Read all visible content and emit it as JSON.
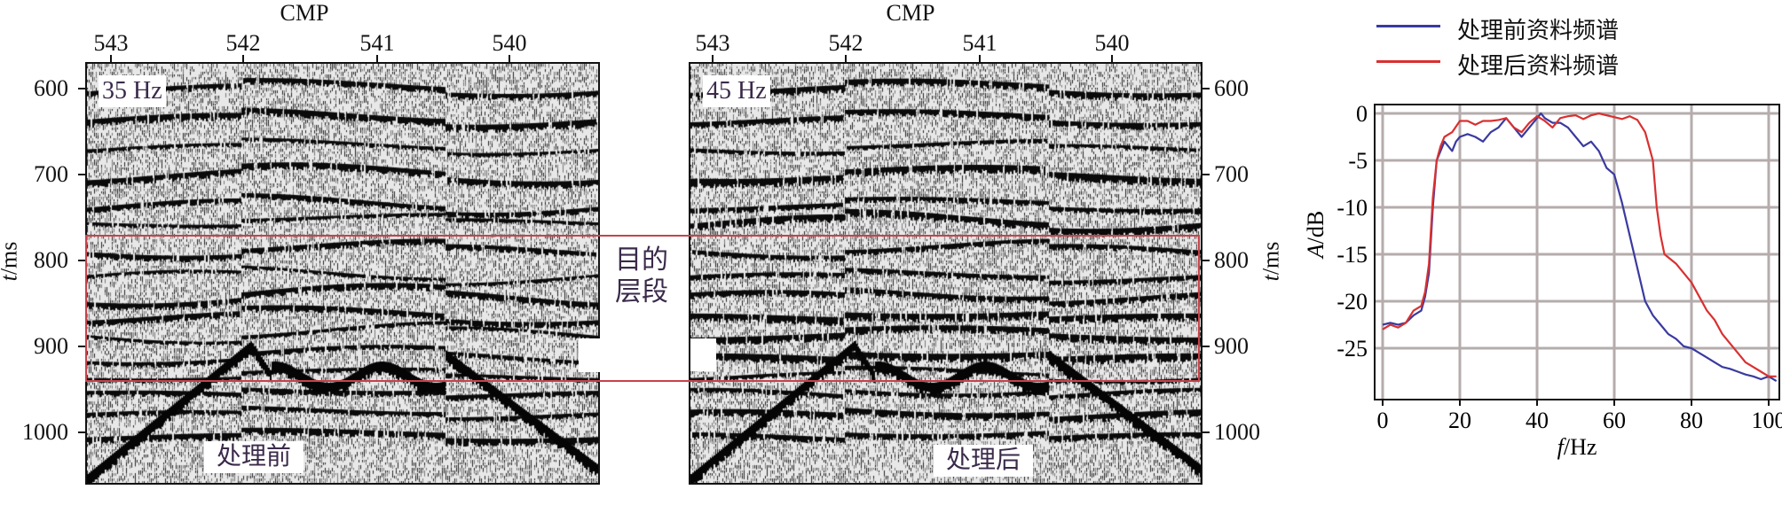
{
  "sections": [
    {
      "id": "before",
      "cmp_label": "CMP",
      "cmp_ticks": [
        "543",
        "542",
        "541",
        "540"
      ],
      "time_ticks": [
        "600",
        "700",
        "800",
        "900",
        "1000"
      ],
      "time_axis_label_italic": "t",
      "time_axis_label_unit": "/ms",
      "freq_tag": "35 Hz",
      "caption": "处理前",
      "axis_side": "left"
    },
    {
      "id": "after",
      "cmp_label": "CMP",
      "cmp_ticks": [
        "543",
        "542",
        "541",
        "540"
      ],
      "time_ticks": [
        "600",
        "700",
        "800",
        "900",
        "1000"
      ],
      "time_axis_label_italic": "t",
      "time_axis_label_unit": "/ms",
      "freq_tag": "45 Hz",
      "caption": "处理后",
      "axis_side": "right"
    }
  ],
  "target_zone": {
    "line1": "目的",
    "line2": "层段",
    "time_range_ms": [
      774,
      944
    ],
    "color": "#c8424a"
  },
  "chart_data": {
    "type": "line",
    "xlabel_italic": "f",
    "xlabel_unit": "/Hz",
    "ylabel_italic": "A",
    "ylabel_unit": "/dB",
    "xlim": [
      -1,
      103
    ],
    "ylim": [
      -30.5,
      1
    ],
    "xticks": [
      0,
      20,
      40,
      60,
      80,
      100
    ],
    "yticks": [
      0,
      -5,
      -10,
      -15,
      -20,
      -25
    ],
    "grid": true,
    "legend_placement": "top",
    "series": [
      {
        "name": "处理前资料频谱",
        "color": "#3a3aa0",
        "x": [
          0,
          2,
          4,
          6,
          8,
          10,
          11,
          12,
          13,
          14,
          15,
          16,
          17,
          18,
          19,
          20,
          22,
          24,
          26,
          28,
          30,
          31,
          32,
          34,
          36,
          38,
          40,
          41,
          42,
          44,
          46,
          48,
          50,
          52,
          54,
          56,
          58,
          60,
          62,
          64,
          66,
          68,
          70,
          72,
          74,
          76,
          78,
          80,
          82,
          84,
          86,
          88,
          90,
          92,
          94,
          96,
          98,
          100,
          102
        ],
        "y": [
          -22.5,
          -22.3,
          -22.5,
          -22.3,
          -21.5,
          -21,
          -19.5,
          -17,
          -10,
          -5,
          -4,
          -3,
          -3.5,
          -4,
          -3,
          -2.5,
          -2.2,
          -2.5,
          -3,
          -2,
          -1.5,
          -1,
          -0.5,
          -1.5,
          -2.5,
          -1.5,
          -0.5,
          0,
          -0.5,
          -1,
          -1,
          -1.5,
          -2.5,
          -3.5,
          -3,
          -4,
          -5.8,
          -6.5,
          -9.5,
          -13,
          -16.5,
          -20,
          -21.5,
          -22.5,
          -23.5,
          -24,
          -24.8,
          -25,
          -25.5,
          -26,
          -26.5,
          -27,
          -27.2,
          -27.5,
          -27.8,
          -28,
          -28.3,
          -28,
          -28.5
        ]
      },
      {
        "name": "处理后资料频谱",
        "color": "#d93030",
        "x": [
          0,
          2,
          4,
          6,
          8,
          10,
          11,
          12,
          13,
          14,
          15,
          16,
          18,
          20,
          22,
          24,
          26,
          28,
          30,
          32,
          34,
          36,
          38,
          40,
          42,
          44,
          46,
          48,
          50,
          52,
          54,
          56,
          58,
          60,
          62,
          64,
          66,
          68,
          69,
          70,
          71,
          72,
          73,
          76,
          78,
          80,
          82,
          84,
          86,
          88,
          90,
          92,
          94,
          96,
          98,
          100,
          102
        ],
        "y": [
          -23,
          -22.5,
          -22.8,
          -22.3,
          -21,
          -20.5,
          -19,
          -16,
          -9,
          -5,
          -3.5,
          -2.5,
          -2,
          -0.8,
          -0.8,
          -1.2,
          -0.8,
          -0.8,
          -0.7,
          -0.5,
          -1.5,
          -2,
          -1,
          -0.3,
          -0.8,
          -1.5,
          -0.5,
          -0.3,
          -0.2,
          -0.6,
          -0.2,
          0,
          -0.2,
          -0.4,
          -0.6,
          -0.3,
          -0.7,
          -2,
          -3.5,
          -5,
          -10,
          -13,
          -15,
          -16,
          -17,
          -18,
          -19.5,
          -21,
          -22,
          -23.5,
          -24.5,
          -25.5,
          -26.5,
          -27,
          -27.5,
          -28,
          -28
        ]
      }
    ]
  }
}
